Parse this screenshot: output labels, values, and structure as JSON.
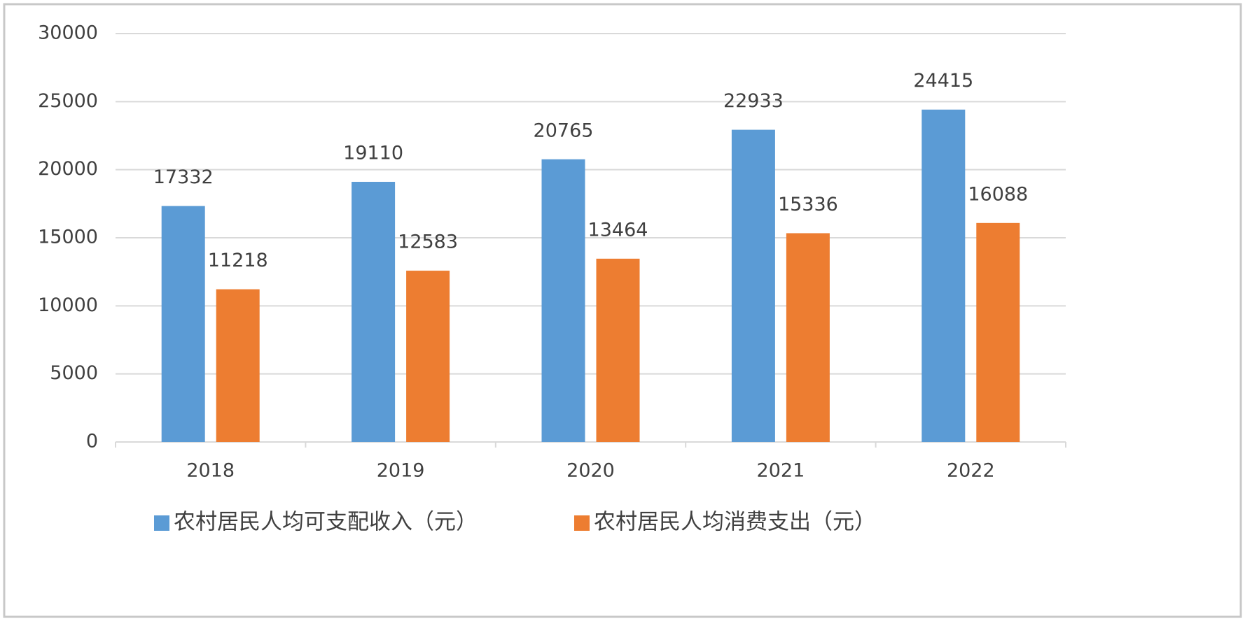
{
  "chart_data": {
    "type": "bar",
    "categories": [
      "2018",
      "2019",
      "2020",
      "2021",
      "2022"
    ],
    "series": [
      {
        "name": "农村居民人均可支配收入（元）",
        "color": "#5b9bd5",
        "values": [
          17332,
          19110,
          20765,
          22933,
          24415
        ]
      },
      {
        "name": "农村居民人均消费支出（元）",
        "color": "#ed7d31",
        "values": [
          11218,
          12583,
          13464,
          15336,
          16088
        ]
      }
    ],
    "ylim": [
      0,
      30000
    ],
    "yticks": [
      0,
      5000,
      10000,
      15000,
      20000,
      25000,
      30000
    ],
    "grid": true,
    "legend": "bottom"
  }
}
